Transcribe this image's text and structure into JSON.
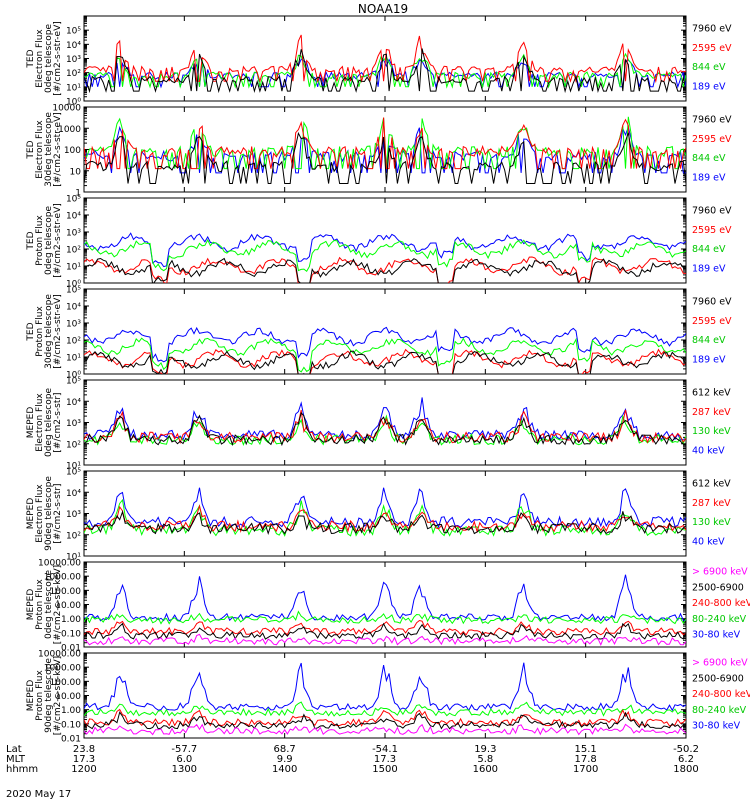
{
  "chart_data": {
    "type": "line",
    "title": "NOAA19",
    "colors": {
      "black": "#000000",
      "red": "#ff0000",
      "green": "#00ff00",
      "green_label": "#00c800",
      "blue": "#0000ff",
      "magenta": "#ff00ff"
    },
    "x_axis": {
      "rows": [
        {
          "label": "Lat",
          "values": [
            "23.8",
            "-57.7",
            "68.7",
            "-54.1",
            "19.3",
            "15.1",
            "-50.2"
          ]
        },
        {
          "label": "MLT",
          "values": [
            "17.3",
            "6.0",
            "9.9",
            "17.3",
            "5.8",
            "17.8",
            "6.2"
          ]
        },
        {
          "label": "hhmm",
          "values": [
            "1200",
            "1300",
            "1400",
            "1500",
            "1600",
            "1700",
            "1800"
          ]
        }
      ],
      "date": "2020 May 17"
    },
    "panels": [
      {
        "name": "ted-electron-0deg",
        "ylabel": [
          "TED",
          "Electron Flux",
          "0deg telescope",
          "[#/cm2-s-str-eV]"
        ],
        "scale": "log",
        "ylim": [
          1,
          1000000
        ],
        "ticks": [
          {
            "v": 1,
            "t": "10⁰"
          },
          {
            "v": 10,
            "t": "10¹"
          },
          {
            "v": 100,
            "t": "10²"
          },
          {
            "v": 1000,
            "t": "10³"
          },
          {
            "v": 10000,
            "t": "10⁴"
          },
          {
            "v": 100000,
            "t": "10⁵"
          }
        ],
        "series": [
          {
            "name": "7960 eV",
            "color": "black",
            "profile": "e0",
            "level": 1.5,
            "cap": 3.6
          },
          {
            "name": "2595 eV",
            "color": "red",
            "profile": "e0",
            "level": 2.2,
            "cap": 4.6
          },
          {
            "name": "844 eV",
            "color": "green",
            "profile": "e0",
            "level": 1.8,
            "cap": 3.5
          },
          {
            "name": "189 eV",
            "color": "blue",
            "profile": "e0",
            "level": 1.8,
            "cap": 3.2
          }
        ]
      },
      {
        "name": "ted-electron-30deg",
        "ylabel": [
          "TED",
          "Electron Flux",
          "30deg telescope",
          "[#/cm2-s-str-eV]"
        ],
        "scale": "log",
        "ylim": [
          1,
          10000
        ],
        "ticks": [
          {
            "v": 1,
            "t": "1"
          },
          {
            "v": 10,
            "t": "10"
          },
          {
            "v": 100,
            "t": "100"
          },
          {
            "v": 1000,
            "t": "1000"
          },
          {
            "v": 10000,
            "t": "10000"
          }
        ],
        "series": [
          {
            "name": "7960 eV",
            "color": "black",
            "profile": "e0",
            "level": 1.2,
            "cap": 2.8
          },
          {
            "name": "2595 eV",
            "color": "red",
            "profile": "e0",
            "level": 1.9,
            "cap": 3.5
          },
          {
            "name": "844 eV",
            "color": "green",
            "profile": "e0",
            "level": 1.9,
            "cap": 3.8
          },
          {
            "name": "189 eV",
            "color": "blue",
            "profile": "e0",
            "level": 1.7,
            "cap": 3.1
          }
        ]
      },
      {
        "name": "ted-proton-0deg",
        "ylabel": [
          "TED",
          "Proton Flux",
          "0deg telescope",
          "[#/cm2-s-str-eV]"
        ],
        "scale": "log",
        "ylim": [
          1,
          100000
        ],
        "ticks": [
          {
            "v": 1,
            "t": "10⁰"
          },
          {
            "v": 10,
            "t": "10¹"
          },
          {
            "v": 100,
            "t": "10²"
          },
          {
            "v": 1000,
            "t": "10³"
          },
          {
            "v": 10000,
            "t": "10⁴"
          },
          {
            "v": 100000,
            "t": "10⁵"
          }
        ],
        "series": [
          {
            "name": "7960 eV",
            "color": "black",
            "profile": "p",
            "level": 0.9,
            "cap": 1.6
          },
          {
            "name": "2595 eV",
            "color": "red",
            "profile": "p",
            "level": 1.0,
            "cap": 1.8
          },
          {
            "name": "844 eV",
            "color": "green",
            "profile": "p",
            "level": 2.0,
            "cap": 2.9
          },
          {
            "name": "189 eV",
            "color": "blue",
            "profile": "p",
            "level": 2.4,
            "cap": 4.2
          }
        ]
      },
      {
        "name": "ted-proton-30deg",
        "ylabel": [
          "TED",
          "Proton Flux",
          "30deg telescope",
          "[#/cm2-s-str-eV]"
        ],
        "scale": "log",
        "ylim": [
          1,
          100000
        ],
        "ticks": [
          {
            "v": 1,
            "t": "10⁰"
          },
          {
            "v": 10,
            "t": "10¹"
          },
          {
            "v": 100,
            "t": "10²"
          },
          {
            "v": 1000,
            "t": "10³"
          },
          {
            "v": 10000,
            "t": "10⁴"
          },
          {
            "v": 100000,
            "t": "10⁵"
          }
        ],
        "series": [
          {
            "name": "7960 eV",
            "color": "black",
            "profile": "p",
            "level": 0.8,
            "cap": 1.5
          },
          {
            "name": "2595 eV",
            "color": "red",
            "profile": "p",
            "level": 0.9,
            "cap": 1.7
          },
          {
            "name": "844 eV",
            "color": "green",
            "profile": "p",
            "level": 1.6,
            "cap": 2.6
          },
          {
            "name": "189 eV",
            "color": "blue",
            "profile": "p",
            "level": 2.2,
            "cap": 4.0
          }
        ]
      },
      {
        "name": "meped-electron-0deg",
        "ylabel": [
          "MEPED",
          "Electron Flux",
          "0deg telescope",
          "[#/cm2-s-str]"
        ],
        "scale": "log",
        "ylim": [
          10,
          100000
        ],
        "ticks": [
          {
            "v": 10,
            "t": "10¹"
          },
          {
            "v": 100,
            "t": "10²"
          },
          {
            "v": 1000,
            "t": "10³"
          },
          {
            "v": 10000,
            "t": "10⁴"
          },
          {
            "v": 100000,
            "t": "10⁵"
          }
        ],
        "series": [
          {
            "name": "612 keV",
            "color": "black",
            "profile": "m0",
            "level": 2.2,
            "cap": 3.4
          },
          {
            "name": "287 keV",
            "color": "red",
            "profile": "m0",
            "level": 2.3,
            "cap": 3.4
          },
          {
            "name": "130 keV",
            "color": "green",
            "profile": "m0",
            "level": 2.2,
            "cap": 3.3
          },
          {
            "name": "40 keV",
            "color": "blue",
            "profile": "m0",
            "level": 2.4,
            "cap": 4.1
          }
        ]
      },
      {
        "name": "meped-electron-90deg",
        "ylabel": [
          "MEPED",
          "Electron Flux",
          "90deg telescope",
          "[#/cm2-s-str]"
        ],
        "scale": "log",
        "ylim": [
          10,
          100000
        ],
        "ticks": [
          {
            "v": 10,
            "t": "10¹"
          },
          {
            "v": 100,
            "t": "10²"
          },
          {
            "v": 1000,
            "t": "10³"
          },
          {
            "v": 10000,
            "t": "10⁴"
          },
          {
            "v": 100000,
            "t": "10⁵"
          }
        ],
        "series": [
          {
            "name": "612 keV",
            "color": "black",
            "profile": "m90",
            "level": 2.3,
            "cap": 3.0
          },
          {
            "name": "287 keV",
            "color": "red",
            "profile": "m90",
            "level": 2.4,
            "cap": 3.2
          },
          {
            "name": "130 keV",
            "color": "green",
            "profile": "m90",
            "level": 2.2,
            "cap": 3.6
          },
          {
            "name": "40 keV",
            "color": "blue",
            "profile": "m90",
            "level": 2.6,
            "cap": 4.3
          }
        ]
      },
      {
        "name": "meped-proton-0deg",
        "ylabel": [
          "MEPED",
          "Proton Flux",
          "0deg telescope",
          "[#/cm2-s-str-keV]"
        ],
        "scale": "log",
        "ylim": [
          0.01,
          10000
        ],
        "ticks": [
          {
            "v": 0.01,
            "t": "0.01"
          },
          {
            "v": 0.1,
            "t": "0.10"
          },
          {
            "v": 1,
            "t": "1.00"
          },
          {
            "v": 10,
            "t": "10.00"
          },
          {
            "v": 100,
            "t": "100.00"
          },
          {
            "v": 1000,
            "t": "1000.00"
          },
          {
            "v": 10000,
            "t": "10000.00"
          }
        ],
        "series": [
          {
            "name": "> 6900 keV",
            "color": "magenta",
            "profile": "pp",
            "level": -1.6,
            "cap": -1.3
          },
          {
            "name": "2500-6900",
            "color": "black",
            "profile": "pp",
            "level": -1.2,
            "cap": -0.4
          },
          {
            "name": "240-800 keV",
            "color": "red",
            "profile": "pp",
            "level": -0.9,
            "cap": -0.1
          },
          {
            "name": "80-240 keV",
            "color": "green",
            "profile": "pp",
            "level": -0.1,
            "cap": 0.3
          },
          {
            "name": "30-80 keV",
            "color": "blue",
            "profile": "pp",
            "level": 0.1,
            "cap": 3.0
          }
        ]
      },
      {
        "name": "meped-proton-90deg",
        "ylabel": [
          "MEPED",
          "Proton Flux",
          "90deg telescope",
          "[#/cm2-s-str-keV]"
        ],
        "scale": "log",
        "ylim": [
          0.01,
          10000
        ],
        "ticks": [
          {
            "v": 0.01,
            "t": "0.01"
          },
          {
            "v": 0.1,
            "t": "0.10"
          },
          {
            "v": 1,
            "t": "1.00"
          },
          {
            "v": 10,
            "t": "10.00"
          },
          {
            "v": 100,
            "t": "100.00"
          },
          {
            "v": 1000,
            "t": "1000.00"
          },
          {
            "v": 10000,
            "t": "10000.00"
          }
        ],
        "series": [
          {
            "name": "> 6900 keV",
            "color": "magenta",
            "profile": "pp",
            "level": -1.5,
            "cap": -1.2
          },
          {
            "name": "2500-6900",
            "color": "black",
            "profile": "pp",
            "level": -1.1,
            "cap": -0.3
          },
          {
            "name": "240-800 keV",
            "color": "red",
            "profile": "pp",
            "level": -0.9,
            "cap": 0.0
          },
          {
            "name": "80-240 keV",
            "color": "green",
            "profile": "pp",
            "level": -0.2,
            "cap": 0.4
          },
          {
            "name": "30-80 keV",
            "color": "blue",
            "profile": "pp",
            "level": 0.2,
            "cap": 3.2
          }
        ]
      }
    ]
  }
}
